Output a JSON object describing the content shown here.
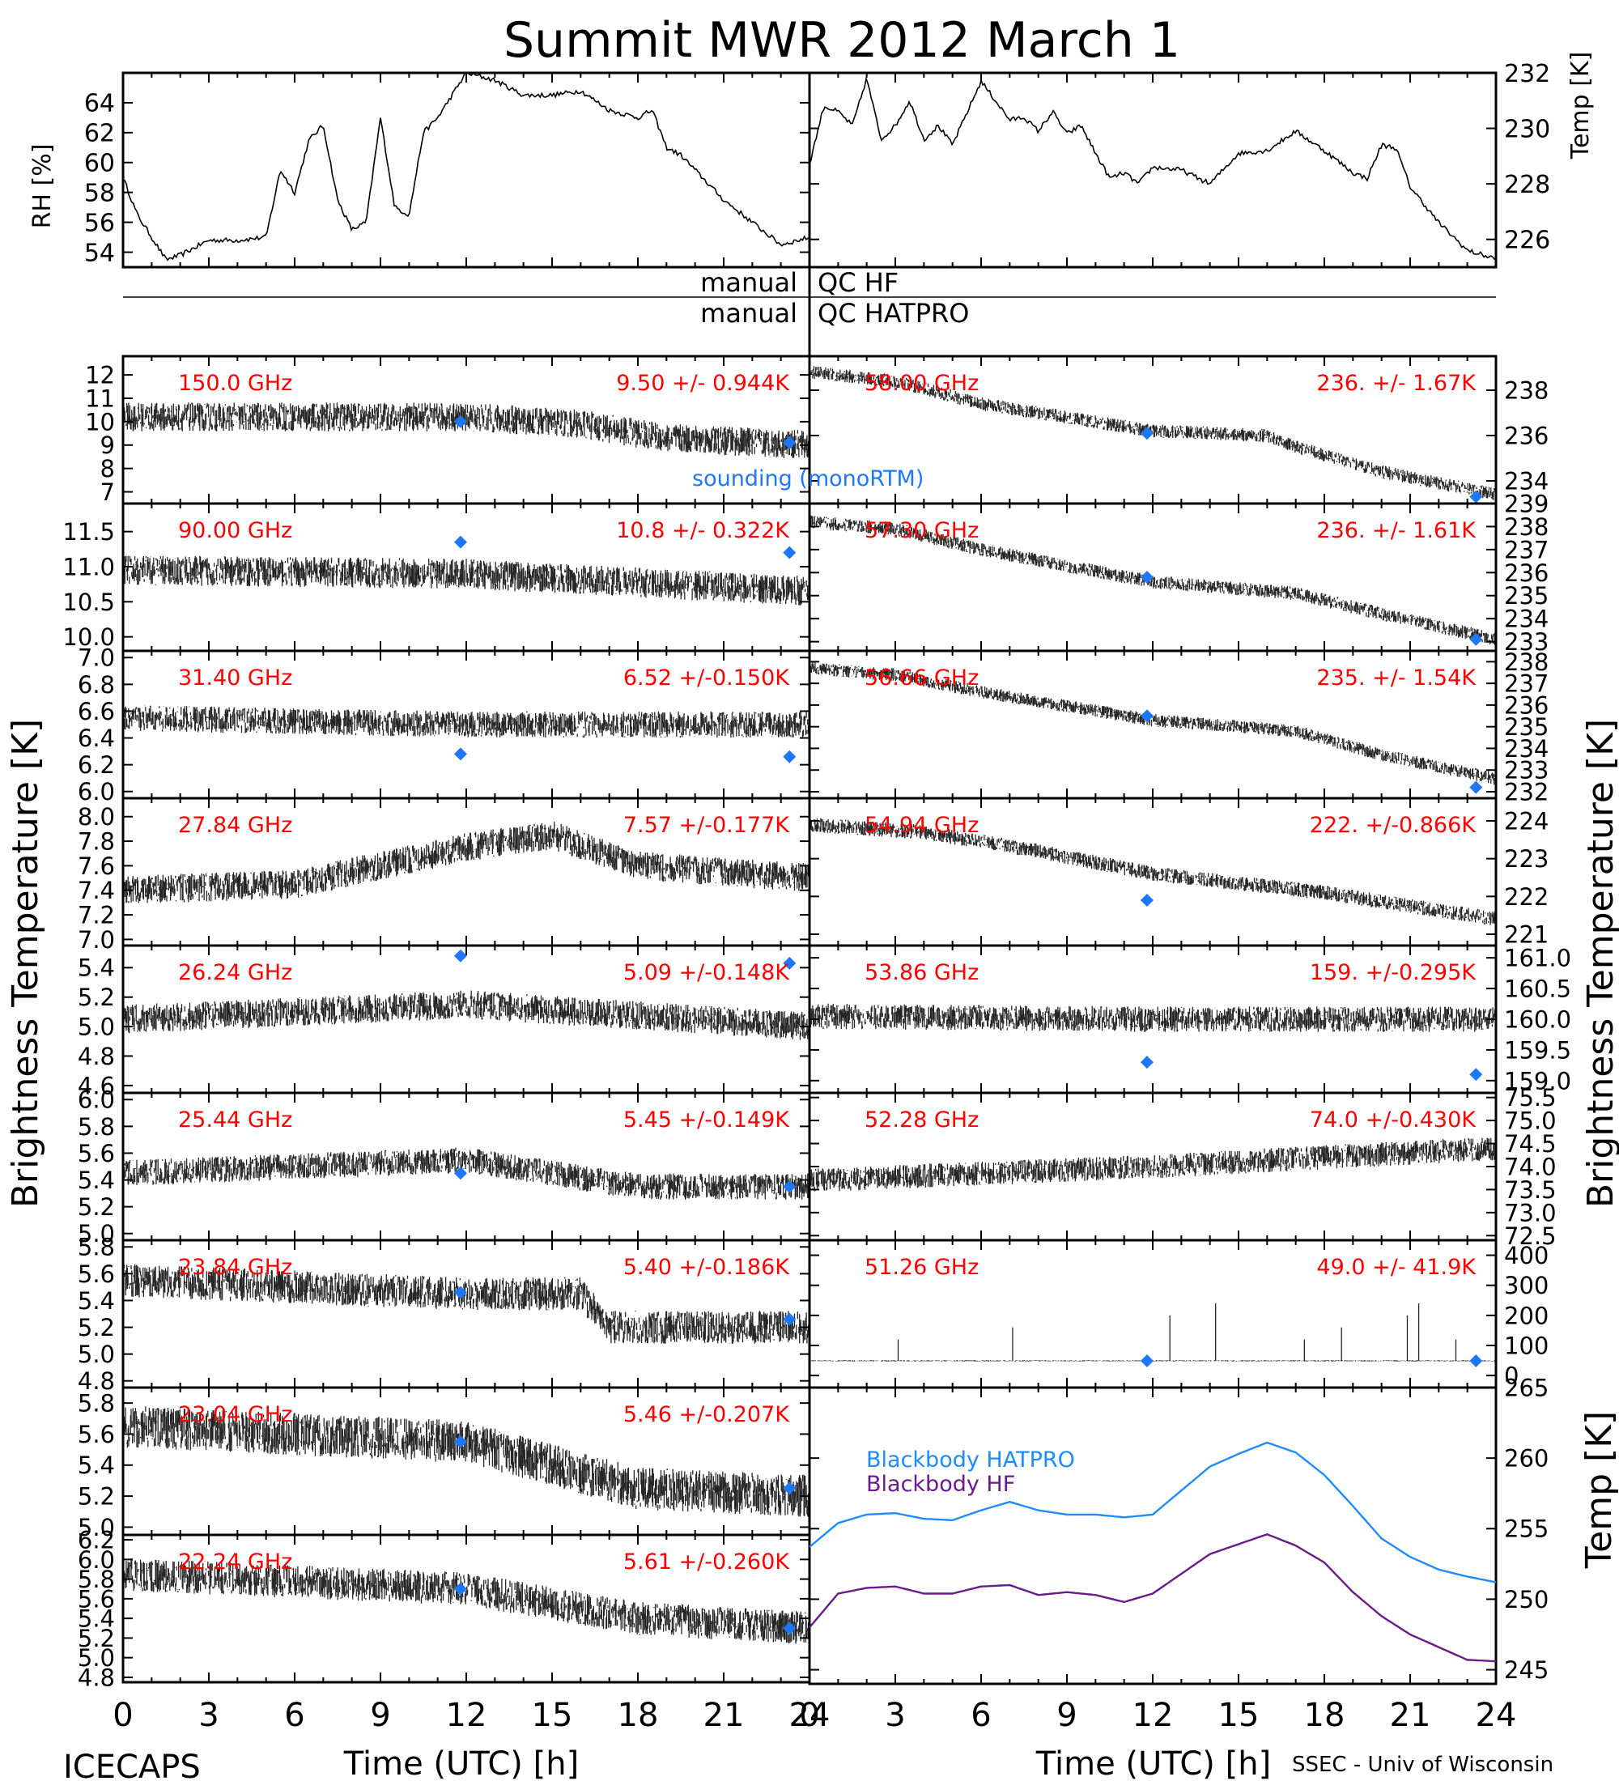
{
  "title": "Summit MWR 2012 March 1",
  "footer": {
    "left": "ICECAPS",
    "right": "SSEC - Univ of Wisconsin"
  },
  "labels": {
    "rh_axis": "RH [%]",
    "temp_axis": "Temp [K]",
    "bt_axis": "Brightness Temperature [K]",
    "bb_temp_axis": "Temp [K]",
    "time_axis": "Time (UTC) [h]",
    "qc_hf": "QC HF",
    "qc_hatpro": "QC HATPRO",
    "qc_manual": "manual",
    "sounding_legend": "sounding (monoRTM)"
  },
  "colors": {
    "stat": "#ff0000",
    "sounding": "#1e78ff",
    "bb_hatpro": "#1e8cff",
    "bb_hf": "#6a1a8a",
    "trace": "#000000"
  },
  "chart_data": {
    "x_ticks": [
      "0",
      "3",
      "6",
      "9",
      "12",
      "15",
      "18",
      "21",
      "24"
    ],
    "x_range": [
      0,
      24
    ],
    "met": {
      "rh": {
        "ylim": [
          53,
          66
        ],
        "ticks": [
          "54",
          "56",
          "58",
          "60",
          "62",
          "64"
        ],
        "x": [
          0,
          0.5,
          1,
          1.5,
          2,
          3,
          4,
          5,
          5.5,
          6,
          6.5,
          7,
          7.5,
          8,
          8.5,
          9,
          9.5,
          10,
          10.5,
          11,
          11.5,
          12,
          13,
          14,
          15,
          16,
          17,
          18,
          18.5,
          19,
          19.5,
          20,
          21,
          22,
          23,
          24
        ],
        "y": [
          59,
          56.5,
          55,
          53.5,
          53.8,
          54.8,
          54.8,
          55,
          59.5,
          58,
          61.5,
          62.5,
          57.5,
          55.5,
          56,
          63,
          57,
          56.5,
          62,
          63,
          64.5,
          66,
          65.5,
          64.5,
          64.5,
          64.8,
          63.5,
          63,
          63.5,
          61,
          60.5,
          59.5,
          57.5,
          56,
          54.5,
          55
        ]
      },
      "temp": {
        "ylim": [
          225,
          232
        ],
        "ticks": [
          "226",
          "228",
          "230",
          "232"
        ],
        "x": [
          0,
          0.5,
          1,
          1.5,
          2,
          2.5,
          3,
          3.5,
          4,
          4.5,
          5,
          6,
          7,
          7.5,
          8,
          8.5,
          9,
          9.5,
          10,
          10.5,
          11,
          11.5,
          12,
          13,
          14,
          15,
          16,
          17,
          18,
          19,
          19.5,
          20,
          20.5,
          21,
          22,
          23,
          24
        ],
        "y": [
          228.7,
          230.8,
          230.6,
          230.1,
          231.8,
          229.6,
          230.1,
          231.0,
          229.6,
          230.1,
          229.4,
          231.7,
          230.3,
          230.4,
          229.9,
          230.6,
          229.8,
          230.1,
          229.1,
          228.2,
          228.4,
          228.0,
          228.6,
          228.5,
          228.0,
          229.1,
          229.2,
          229.9,
          229.2,
          228.4,
          228.2,
          229.4,
          229.3,
          227.9,
          226.6,
          225.6,
          225.3
        ]
      }
    },
    "hf_panels": [
      {
        "freq": "150.0 GHz",
        "stat": "9.50 +/- 0.944K",
        "ylim": [
          6.5,
          12.8
        ],
        "ticks": [
          "7",
          "8",
          "9",
          "10",
          "11",
          "12"
        ],
        "trend": [
          [
            0,
            10.2
          ],
          [
            12,
            10.2
          ],
          [
            16,
            9.9
          ],
          [
            19,
            9.3
          ],
          [
            24,
            9.0
          ]
        ],
        "noise": 0.95,
        "sounding": [
          [
            11.8,
            10.0
          ],
          [
            23.3,
            9.1
          ]
        ]
      },
      {
        "freq": "90.00 GHz",
        "stat": "10.8 +/- 0.322K",
        "ylim": [
          9.8,
          11.9
        ],
        "ticks": [
          "10.0",
          "10.5",
          "11.0",
          "11.5"
        ],
        "trend": [
          [
            0,
            10.95
          ],
          [
            12,
            10.9
          ],
          [
            24,
            10.65
          ]
        ],
        "noise": 0.33,
        "sounding": [
          [
            11.8,
            11.35
          ],
          [
            23.3,
            11.2
          ]
        ]
      },
      {
        "freq": "31.40 GHz",
        "stat": "6.52 +/-0.150K",
        "ylim": [
          5.95,
          7.05
        ],
        "ticks": [
          "6.0",
          "6.2",
          "6.4",
          "6.6",
          "6.8",
          "7.0"
        ],
        "trend": [
          [
            0,
            6.55
          ],
          [
            12,
            6.5
          ],
          [
            24,
            6.5
          ]
        ],
        "noise": 0.15,
        "sounding": [
          [
            11.8,
            6.28
          ],
          [
            23.3,
            6.26
          ]
        ]
      },
      {
        "freq": "27.84 GHz",
        "stat": "7.57 +/-0.177K",
        "ylim": [
          6.95,
          8.15
        ],
        "ticks": [
          "7.0",
          "7.2",
          "7.4",
          "7.6",
          "7.8",
          "8.0"
        ],
        "trend": [
          [
            0,
            7.4
          ],
          [
            6,
            7.45
          ],
          [
            12,
            7.75
          ],
          [
            15,
            7.85
          ],
          [
            18,
            7.6
          ],
          [
            24,
            7.5
          ]
        ],
        "noise": 0.18,
        "sounding": []
      },
      {
        "freq": "26.24 GHz",
        "stat": "5.09 +/-0.148K",
        "ylim": [
          4.55,
          5.55
        ],
        "ticks": [
          "4.6",
          "4.8",
          "5.0",
          "5.2",
          "5.4"
        ],
        "trend": [
          [
            0,
            5.05
          ],
          [
            12,
            5.15
          ],
          [
            24,
            5.0
          ]
        ],
        "noise": 0.15,
        "sounding": [
          [
            11.8,
            5.48
          ],
          [
            23.3,
            5.43
          ]
        ]
      },
      {
        "freq": "25.44 GHz",
        "stat": "5.45 +/-0.149K",
        "ylim": [
          4.95,
          6.05
        ],
        "ticks": [
          "5.0",
          "5.2",
          "5.4",
          "5.6",
          "5.8",
          "6.0"
        ],
        "trend": [
          [
            0,
            5.45
          ],
          [
            12,
            5.55
          ],
          [
            18,
            5.35
          ],
          [
            24,
            5.35
          ]
        ],
        "noise": 0.15,
        "sounding": [
          [
            11.8,
            5.45
          ],
          [
            23.3,
            5.35
          ]
        ]
      },
      {
        "freq": "23.84 GHz",
        "stat": "5.40 +/-0.186K",
        "ylim": [
          4.75,
          5.85
        ],
        "ticks": [
          "4.8",
          "5.0",
          "5.2",
          "5.4",
          "5.6",
          "5.8"
        ],
        "trend": [
          [
            0,
            5.55
          ],
          [
            12,
            5.45
          ],
          [
            16,
            5.45
          ],
          [
            17,
            5.2
          ],
          [
            24,
            5.2
          ]
        ],
        "noise": 0.19,
        "sounding": [
          [
            11.8,
            5.46
          ],
          [
            23.3,
            5.26
          ]
        ]
      },
      {
        "freq": "23.04 GHz",
        "stat": "5.46 +/-0.207K",
        "ylim": [
          4.95,
          5.9
        ],
        "ticks": [
          "5.0",
          "5.2",
          "5.4",
          "5.6",
          "5.8"
        ],
        "trend": [
          [
            0,
            5.65
          ],
          [
            12,
            5.55
          ],
          [
            18,
            5.25
          ],
          [
            24,
            5.2
          ]
        ],
        "noise": 0.21,
        "sounding": [
          [
            11.8,
            5.55
          ],
          [
            23.3,
            5.25
          ]
        ]
      },
      {
        "freq": "22.24 GHz",
        "stat": "5.61 +/-0.260K",
        "ylim": [
          4.75,
          6.25
        ],
        "ticks": [
          "4.8",
          "5.0",
          "5.2",
          "5.4",
          "5.6",
          "5.8",
          "6.0",
          "6.2"
        ],
        "trend": [
          [
            0,
            5.85
          ],
          [
            12,
            5.7
          ],
          [
            18,
            5.4
          ],
          [
            24,
            5.3
          ]
        ],
        "noise": 0.26,
        "sounding": [
          [
            11.8,
            5.7
          ],
          [
            23.3,
            5.3
          ]
        ]
      }
    ],
    "hatpro_panels": [
      {
        "freq": "58.00 GHz",
        "stat": "236. +/- 1.67K",
        "ylim": [
          233,
          239.5
        ],
        "ticks": [
          "234",
          "236",
          "238"
        ],
        "trend": [
          [
            0,
            238.8
          ],
          [
            3,
            238.4
          ],
          [
            6,
            237.4
          ],
          [
            12,
            236.2
          ],
          [
            16,
            236.0
          ],
          [
            17,
            235.5
          ],
          [
            20,
            234.4
          ],
          [
            24,
            233.4
          ]
        ],
        "noise": 0.45,
        "sounding": [
          [
            11.8,
            236.1
          ],
          [
            23.3,
            233.3
          ]
        ]
      },
      {
        "freq": "57.30 GHz",
        "stat": "236. +/- 1.61K",
        "ylim": [
          232.6,
          239
        ],
        "ticks": [
          "233",
          "234",
          "235",
          "236",
          "237",
          "238",
          "239"
        ],
        "trend": [
          [
            0,
            238.2
          ],
          [
            3,
            237.9
          ],
          [
            6,
            237.0
          ],
          [
            12,
            235.6
          ],
          [
            17,
            235.1
          ],
          [
            20,
            234.2
          ],
          [
            24,
            233.1
          ]
        ],
        "noise": 0.45,
        "sounding": [
          [
            11.8,
            235.8
          ],
          [
            23.3,
            233.1
          ]
        ]
      },
      {
        "freq": "56.66 GHz",
        "stat": "235. +/- 1.54K",
        "ylim": [
          231.7,
          238.5
        ],
        "ticks": [
          "232",
          "233",
          "234",
          "235",
          "236",
          "237",
          "238"
        ],
        "trend": [
          [
            0,
            237.7
          ],
          [
            3,
            237.4
          ],
          [
            6,
            236.6
          ],
          [
            12,
            235.3
          ],
          [
            17,
            234.8
          ],
          [
            20,
            233.7
          ],
          [
            24,
            232.6
          ]
        ],
        "noise": 0.45,
        "sounding": [
          [
            11.8,
            235.5
          ],
          [
            23.3,
            232.2
          ]
        ]
      },
      {
        "freq": "54.94 GHz",
        "stat": "222. +/-0.866K",
        "ylim": [
          220.7,
          224.6
        ],
        "ticks": [
          "221",
          "222",
          "223",
          "224"
        ],
        "trend": [
          [
            0,
            223.9
          ],
          [
            4,
            223.7
          ],
          [
            8,
            223.2
          ],
          [
            12,
            222.6
          ],
          [
            18,
            222.1
          ],
          [
            24,
            221.4
          ]
        ],
        "noise": 0.3,
        "sounding": [
          [
            11.8,
            221.9
          ]
        ]
      },
      {
        "freq": "53.86 GHz",
        "stat": "159. +/-0.295K",
        "ylim": [
          158.8,
          161.2
        ],
        "ticks": [
          "159.0",
          "159.5",
          "160.0",
          "160.5",
          "161.0"
        ],
        "trend": [
          [
            0,
            160.05
          ],
          [
            12,
            160.0
          ],
          [
            24,
            160.0
          ]
        ],
        "noise": 0.32,
        "sounding": [
          [
            11.8,
            159.3
          ],
          [
            23.3,
            159.1
          ]
        ]
      },
      {
        "freq": "52.28 GHz",
        "stat": "74.0 +/-0.430K",
        "ylim": [
          72.4,
          75.6
        ],
        "ticks": [
          "72.5",
          "73.0",
          "73.5",
          "74.0",
          "74.5",
          "75.0",
          "75.5"
        ],
        "trend": [
          [
            0,
            73.7
          ],
          [
            12,
            74.0
          ],
          [
            24,
            74.4
          ]
        ],
        "noise": 0.4,
        "sounding": []
      },
      {
        "freq": "51.26 GHz",
        "stat": "49.0 +/- 41.9K",
        "ylim": [
          -40,
          450
        ],
        "ticks": [
          "0",
          "100",
          "200",
          "300",
          "400"
        ],
        "trend": [
          [
            0,
            49
          ],
          [
            24,
            49
          ]
        ],
        "noise": 3,
        "sounding": [
          [
            11.8,
            49
          ],
          [
            23.3,
            49
          ]
        ]
      }
    ],
    "blackbody": {
      "ylim": [
        244,
        265
      ],
      "ticks": [
        "245",
        "250",
        "255",
        "260",
        "265"
      ],
      "hatpro": {
        "name": "Blackbody HATPRO",
        "x": [
          0,
          1,
          2,
          3,
          4,
          5,
          6,
          7,
          8,
          9,
          10,
          11,
          12,
          13,
          14,
          15,
          16,
          17,
          18,
          19,
          20,
          21,
          22,
          23,
          24
        ],
        "y": [
          253.7,
          255.4,
          256.0,
          256.1,
          255.7,
          255.6,
          256.3,
          256.9,
          256.3,
          256.0,
          256.0,
          255.8,
          256.0,
          257.7,
          259.4,
          260.3,
          261.1,
          260.4,
          258.8,
          256.6,
          254.3,
          253.0,
          252.1,
          251.6,
          251.2
        ]
      },
      "hf": {
        "name": "Blackbody HF",
        "x": [
          0,
          1,
          2,
          3,
          4,
          5,
          6,
          7,
          8,
          9,
          10,
          11,
          12,
          13,
          14,
          15,
          16,
          17,
          18,
          19,
          20,
          21,
          22,
          23,
          24
        ],
        "y": [
          248.0,
          250.4,
          250.8,
          250.9,
          250.4,
          250.4,
          250.9,
          251.0,
          250.3,
          250.5,
          250.3,
          249.8,
          250.4,
          251.8,
          253.2,
          253.9,
          254.6,
          253.8,
          252.6,
          250.5,
          248.8,
          247.5,
          246.6,
          245.7,
          245.6
        ]
      }
    }
  }
}
